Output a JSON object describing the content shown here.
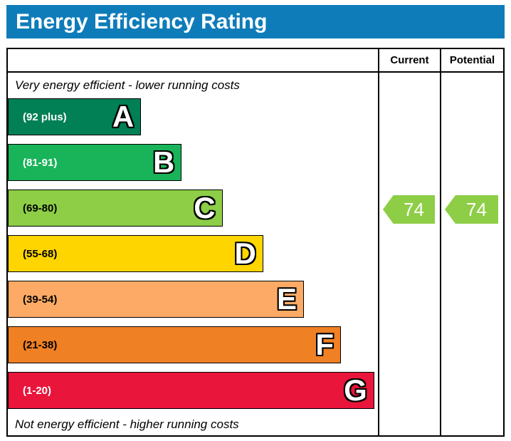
{
  "title": "Energy Efficiency Rating",
  "accent_color": "#0f7cba",
  "columns": {
    "current": "Current",
    "potential": "Potential"
  },
  "labels": {
    "top": "Very energy efficient - lower running costs",
    "bottom": "Not energy efficient - higher running costs"
  },
  "bands": [
    {
      "letter": "A",
      "range": "(92 plus)",
      "color": "#008054",
      "range_color": "#ffffff",
      "width_pct": 36
    },
    {
      "letter": "B",
      "range": "(81-91)",
      "color": "#19b459",
      "range_color": "#ffffff",
      "width_pct": 47
    },
    {
      "letter": "C",
      "range": "(69-80)",
      "color": "#8dce46",
      "range_color": "#000000",
      "width_pct": 58
    },
    {
      "letter": "D",
      "range": "(55-68)",
      "color": "#ffd500",
      "range_color": "#000000",
      "width_pct": 69
    },
    {
      "letter": "E",
      "range": "(39-54)",
      "color": "#fcaa65",
      "range_color": "#000000",
      "width_pct": 80
    },
    {
      "letter": "F",
      "range": "(21-38)",
      "color": "#ef8023",
      "range_color": "#000000",
      "width_pct": 90
    },
    {
      "letter": "G",
      "range": "(1-20)",
      "color": "#e9153b",
      "range_color": "#ffffff",
      "width_pct": 99
    }
  ],
  "current": {
    "label": "74",
    "band_index": 2,
    "arrow_color": "#8dce46"
  },
  "potential": {
    "label": "74",
    "band_index": 2,
    "arrow_color": "#8dce46"
  },
  "chart_data": {
    "type": "bar",
    "title": "Energy Efficiency Rating",
    "categories": [
      "A",
      "B",
      "C",
      "D",
      "E",
      "F",
      "G"
    ],
    "ranges": [
      "92 plus",
      "81-91",
      "69-80",
      "55-68",
      "39-54",
      "21-38",
      "1-20"
    ],
    "bar_widths_pct": [
      36,
      47,
      58,
      69,
      80,
      90,
      99
    ],
    "band_colors": [
      "#008054",
      "#19b459",
      "#8dce46",
      "#ffd500",
      "#fcaa65",
      "#ef8023",
      "#e9153b"
    ],
    "current": 74,
    "current_band": "C",
    "potential": 74,
    "potential_band": "C",
    "annotations": [
      "Very energy efficient - lower running costs",
      "Not energy efficient - higher running costs"
    ],
    "legend_position": "none",
    "grid": false
  }
}
